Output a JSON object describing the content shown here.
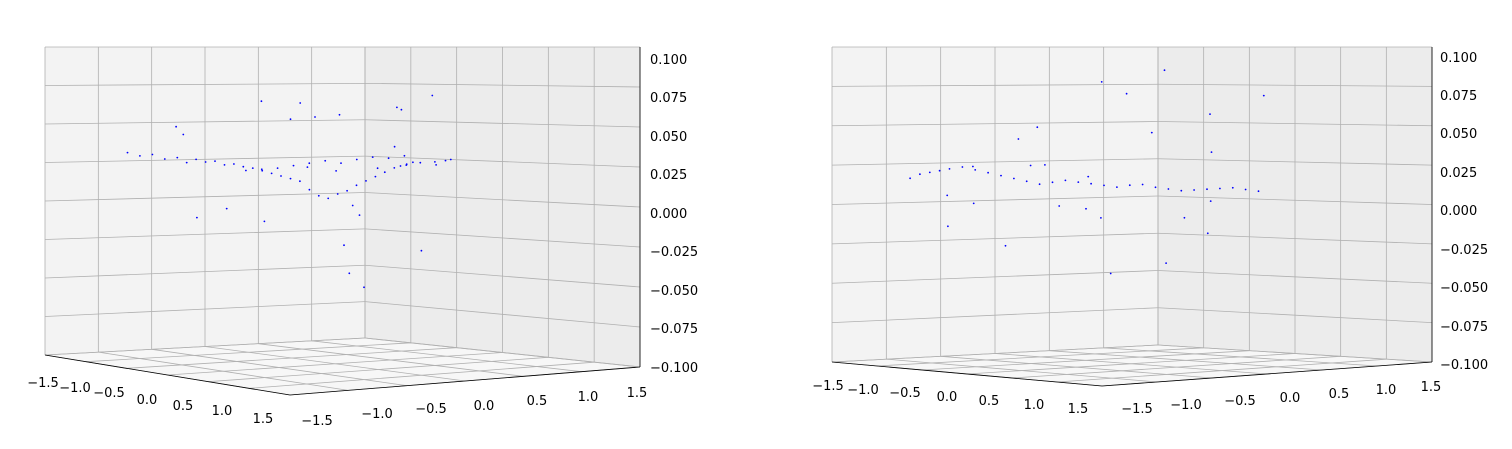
{
  "chart_data": [
    {
      "type": "scatter",
      "projection": "3d",
      "title": "",
      "marker_color": "#0000ff",
      "pane_colors": {
        "left_wall": "#f3f3f3",
        "right_wall": "#ececec",
        "floor": "#f7f7f7"
      },
      "grid": true,
      "axis_a_ticks": [
        "−1.5",
        "−1.0",
        "−0.5",
        "0.0",
        "0.5",
        "1.0",
        "1.5"
      ],
      "axis_b_ticks": [
        "−1.5",
        "−1.0",
        "−0.5",
        "0.0",
        "0.5",
        "1.0",
        "1.5"
      ],
      "z_ticks": [
        "0.100",
        "0.075",
        "0.050",
        "0.025",
        "0.000",
        "−0.025",
        "−0.050",
        "−0.075",
        "−0.100"
      ],
      "axis_a_range": [
        -1.5,
        1.5
      ],
      "axis_b_range": [
        -1.5,
        1.5
      ],
      "zlim": [
        -0.1,
        0.1
      ],
      "points": {
        "a": [
          -1.3,
          -1.2,
          -1.1,
          -1.0,
          -0.9,
          -0.85,
          -0.8,
          -0.75,
          -0.7,
          -0.65,
          -0.6,
          -0.55,
          -0.5,
          -0.45,
          -0.4,
          -0.35,
          -0.3,
          -0.25,
          -0.2,
          -0.15,
          -0.1,
          -0.05,
          0.0,
          0.05,
          0.1,
          0.15,
          0.2,
          0.25,
          0.3,
          0.35,
          0.4,
          0.45,
          0.5,
          0.55,
          0.6,
          0.65,
          0.7,
          0.75,
          0.8,
          0.85,
          0.9,
          0.95,
          1.0,
          1.05,
          1.1,
          1.15,
          1.2,
          1.25,
          1.3,
          1.35,
          1.4,
          -0.6,
          -0.4,
          -0.2,
          0.0,
          0.2,
          0.4,
          0.6,
          0.8,
          1.0,
          1.2,
          -1.0,
          0.3,
          0.9,
          1.1,
          -0.3,
          0.1,
          0.5,
          0.7,
          -0.8,
          0.6
        ],
        "b": [
          -1.4,
          -1.3,
          -1.2,
          -1.1,
          -1.0,
          -0.9,
          -0.8,
          -0.7,
          -0.6,
          -0.5,
          -0.4,
          -0.3,
          -0.2,
          -0.1,
          0.0,
          0.1,
          0.2,
          0.3,
          0.4,
          0.5,
          0.6,
          0.7,
          0.8,
          0.9,
          1.0,
          1.1,
          1.2,
          1.3,
          1.35,
          1.4,
          1.45,
          -1.2,
          -1.0,
          -0.8,
          -0.6,
          -0.4,
          -0.2,
          0.0,
          0.2,
          0.4,
          0.6,
          0.8,
          1.0,
          1.2,
          1.3,
          -0.9,
          -0.5,
          0.1,
          0.5,
          0.9,
          1.1,
          -1.3,
          -0.7,
          -0.3,
          0.3,
          0.7,
          1.2,
          -1.1,
          0.0,
          0.6,
          1.0,
          -0.6,
          0.4,
          0.8,
          -0.2,
          0.2,
          0.9,
          -0.4,
          1.3,
          -1.0,
          0.5
        ],
        "z": [
          0.02,
          0.018,
          0.02,
          0.017,
          0.019,
          0.015,
          0.018,
          0.016,
          0.017,
          0.014,
          0.015,
          0.013,
          0.012,
          0.01,
          0.008,
          0.006,
          0.004,
          0.002,
          -0.005,
          -0.01,
          -0.012,
          -0.008,
          -0.005,
          0.0,
          0.004,
          0.008,
          0.012,
          0.016,
          0.018,
          0.02,
          0.022,
          0.024,
          0.025,
          0.026,
          0.028,
          0.03,
          0.032,
          0.03,
          0.033,
          0.035,
          0.034,
          0.036,
          0.03,
          0.028,
          0.032,
          0.034,
          0.03,
          0.031,
          0.033,
          0.035,
          0.037,
          0.05,
          -0.02,
          -0.03,
          0.06,
          -0.015,
          0.07,
          0.085,
          -0.04,
          0.045,
          0.09,
          -0.035,
          0.065,
          0.075,
          -0.06,
          0.055,
          -0.025,
          0.08,
          -0.05,
          0.04,
          -0.08
        ]
      }
    },
    {
      "type": "scatter",
      "projection": "3d",
      "title": "",
      "marker_color": "#0000ff",
      "pane_colors": {
        "left_wall": "#f3f3f3",
        "right_wall": "#ececec",
        "floor": "#f7f7f7"
      },
      "grid": true,
      "axis_a_ticks": [
        "−1.5",
        "−1.0",
        "−0.5",
        "0.0",
        "0.5",
        "1.0",
        "1.5"
      ],
      "axis_b_ticks": [
        "−1.5",
        "−1.0",
        "−0.5",
        "0.0",
        "0.5",
        "1.0",
        "1.5"
      ],
      "z_ticks": [
        "0.100",
        "0.075",
        "0.050",
        "0.025",
        "0.000",
        "−0.025",
        "−0.050",
        "−0.075",
        "−0.100"
      ],
      "axis_a_range": [
        -1.5,
        1.5
      ],
      "axis_b_range": [
        -1.5,
        1.5
      ],
      "zlim": [
        -0.1,
        0.1
      ],
      "points": {
        "a": [
          -1.4,
          -1.3,
          -1.2,
          -1.1,
          -1.0,
          -0.9,
          -0.8,
          -0.7,
          -0.6,
          -0.5,
          -0.4,
          -0.3,
          -0.2,
          -0.1,
          0.0,
          0.1,
          0.2,
          0.3,
          0.4,
          0.5,
          0.6,
          0.7,
          0.8,
          0.9,
          1.0,
          1.1,
          1.2,
          1.3,
          1.4,
          -1.0,
          -0.6,
          -0.2,
          0.2,
          0.6,
          1.0,
          -0.8,
          0.0,
          0.8,
          -1.2,
          1.2,
          -0.4,
          0.4,
          1.3,
          -1.3,
          0.9,
          -0.9,
          0.5,
          -0.5,
          0.1,
          -0.1,
          0.7,
          -0.7,
          1.1,
          -1.1
        ],
        "b": [
          -1.4,
          -1.35,
          -1.3,
          -1.25,
          -1.2,
          -1.1,
          -1.0,
          -0.9,
          -0.8,
          -0.7,
          -0.6,
          -0.5,
          -0.4,
          -0.3,
          -0.2,
          -0.1,
          0.0,
          0.1,
          0.2,
          0.3,
          0.4,
          0.5,
          0.6,
          0.7,
          0.8,
          0.9,
          1.0,
          1.1,
          1.2,
          -0.8,
          -0.2,
          0.4,
          1.0,
          1.3,
          -1.2,
          -0.5,
          0.6,
          1.1,
          -1.0,
          0.2,
          -0.3,
          0.8,
          1.4,
          -0.9,
          0.0,
          0.5,
          -0.6,
          0.9,
          -1.1,
          0.3,
          1.2,
          -0.4,
          0.7,
          -0.7
        ],
        "z": [
          0.0,
          0.004,
          0.006,
          0.008,
          0.01,
          0.012,
          0.01,
          0.008,
          0.006,
          0.004,
          0.002,
          0.0,
          0.002,
          0.004,
          0.003,
          0.002,
          0.001,
          0.0,
          0.002,
          0.003,
          0.001,
          0.0,
          -0.001,
          0.0,
          0.001,
          0.002,
          0.003,
          0.002,
          0.001,
          -0.02,
          0.045,
          -0.03,
          0.095,
          0.06,
          -0.01,
          -0.055,
          0.075,
          0.03,
          -0.04,
          -0.02,
          0.015,
          -0.065,
          0.08,
          -0.015,
          0.05,
          -0.025,
          0.012,
          -0.08,
          0.02,
          0.085,
          -0.012,
          0.035,
          -0.035,
          0.01
        ]
      }
    }
  ]
}
